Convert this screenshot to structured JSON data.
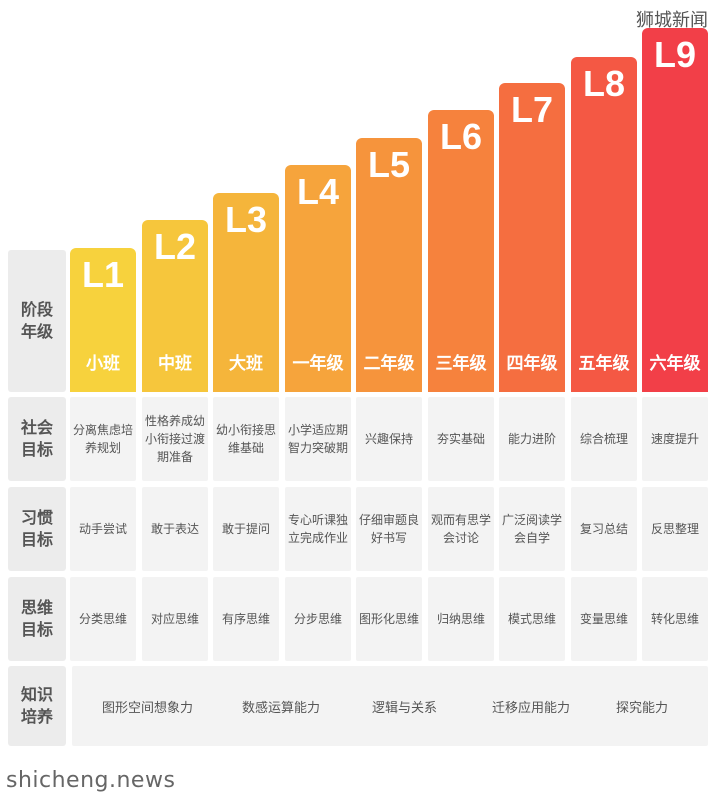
{
  "watermark_top": "狮城新闻",
  "watermark_bottom": "shicheng.news",
  "row_headers": [
    "阶段年级",
    "社会目标",
    "习惯目标",
    "思维目标",
    "知识培养"
  ],
  "levels": [
    {
      "level": "L1",
      "grade": "小班",
      "color_top": "#f7d23d",
      "color_bottom": "#f7d23d"
    },
    {
      "level": "L2",
      "grade": "中班",
      "color_top": "#f6c63c",
      "color_bottom": "#f6c63c"
    },
    {
      "level": "L3",
      "grade": "大班",
      "color_top": "#f5b53b",
      "color_bottom": "#f5b53b"
    },
    {
      "level": "L4",
      "grade": "一年级",
      "color_top": "#f6a43c",
      "color_bottom": "#f6a43c"
    },
    {
      "level": "L5",
      "grade": "二年级",
      "color_top": "#f6943c",
      "color_bottom": "#f6943c"
    },
    {
      "level": "L6",
      "grade": "三年级",
      "color_top": "#f6823d",
      "color_bottom": "#f6823d"
    },
    {
      "level": "L7",
      "grade": "四年级",
      "color_top": "#f56e40",
      "color_bottom": "#f56e40"
    },
    {
      "level": "L8",
      "grade": "五年级",
      "color_top": "#f45844",
      "color_bottom": "#f45844"
    },
    {
      "level": "L9",
      "grade": "六年级",
      "color_top": "#f23f48",
      "color_bottom": "#f23f48"
    }
  ],
  "social_goals": [
    "分离焦虑培养规划",
    "性格养成幼小衔接过渡期准备",
    "幼小衔接思维基础",
    "小学适应期智力突破期",
    "兴趣保持",
    "夯实基础",
    "能力进阶",
    "综合梳理",
    "速度提升"
  ],
  "habit_goals": [
    "动手尝试",
    "敢于表达",
    "敢于提问",
    "专心听课独立完成作业",
    "仔细审题良好书写",
    "观而有思学会讨论",
    "广泛阅读学会自学",
    "复习总结",
    "反思整理"
  ],
  "thinking_goals": [
    "分类思维",
    "对应思维",
    "有序思维",
    "分步思维",
    "图形化思维",
    "归纳思维",
    "模式思维",
    "变量思维",
    "转化思维"
  ],
  "knowledge": [
    "图形空间想象力",
    "数感运算能力",
    "逻辑与关系",
    "迁移应用能力",
    "探究能力"
  ]
}
